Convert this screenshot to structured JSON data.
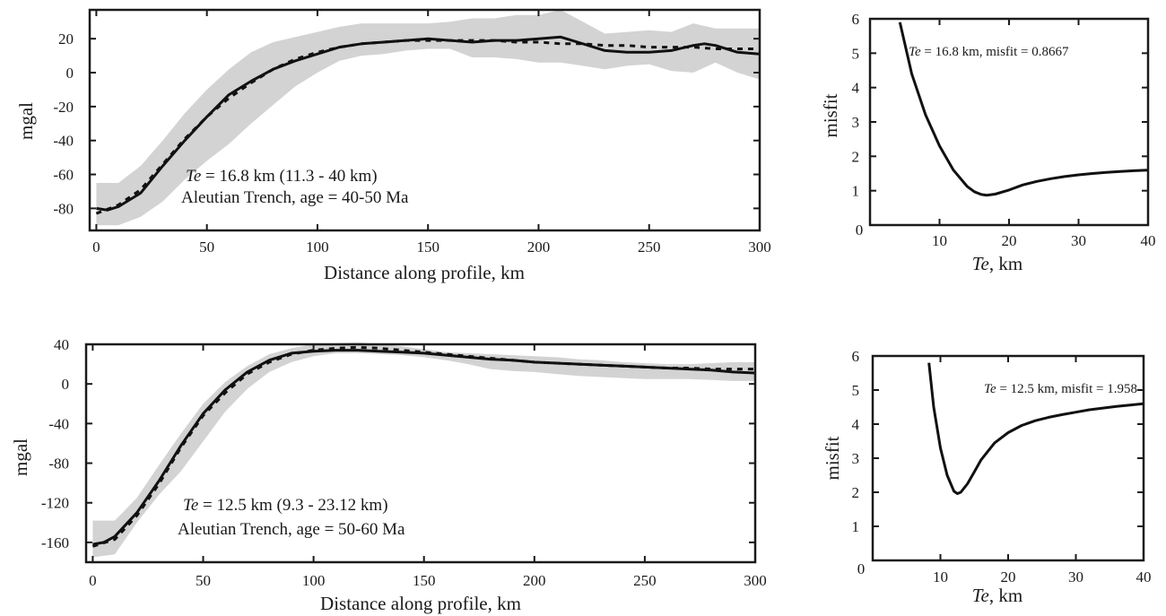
{
  "colors": {
    "uncertainty_band": "#d3d3d3",
    "line": "#111111"
  },
  "chart_data": [
    {
      "id": "p1",
      "type": "line",
      "xlabel": "Distance along profile, km",
      "ylabel": "mgal",
      "xlim": [
        -3,
        300
      ],
      "ylim": [
        -93,
        37
      ],
      "xticks": [
        0,
        50,
        100,
        150,
        200,
        250,
        300
      ],
      "yticks": [
        20,
        0,
        -20,
        -40,
        -60,
        -80
      ],
      "grid": false,
      "annotation": {
        "line1_italic": "Te",
        "line1_rest": " = 16.8 km (11.3 - 40 km)",
        "line2": "Aleutian Trench, age = 40-50 Ma"
      },
      "band": {
        "x": [
          0,
          10,
          20,
          30,
          40,
          50,
          60,
          70,
          80,
          90,
          100,
          110,
          120,
          130,
          140,
          150,
          160,
          170,
          180,
          190,
          200,
          210,
          220,
          230,
          240,
          250,
          260,
          270,
          280,
          290,
          300
        ],
        "upper": [
          -65,
          -65,
          -55,
          -40,
          -24,
          -10,
          2,
          12,
          18,
          21,
          24,
          27,
          29,
          29,
          29,
          29,
          30,
          32,
          32,
          34,
          34,
          37,
          30,
          23,
          24,
          25,
          24,
          29,
          26,
          26,
          26
        ],
        "lower": [
          -90,
          -90,
          -85,
          -76,
          -63,
          -52,
          -42,
          -30,
          -19,
          -8,
          0,
          7,
          10,
          11,
          13,
          14,
          14,
          9,
          9,
          8,
          6,
          6,
          4,
          2,
          4,
          5,
          1,
          0,
          6,
          0,
          -4
        ]
      },
      "series": [
        {
          "style": "solid",
          "x": [
            0,
            5,
            10,
            20,
            30,
            40,
            50,
            60,
            70,
            80,
            90,
            100,
            110,
            120,
            130,
            140,
            150,
            160,
            170,
            180,
            190,
            200,
            210,
            220,
            230,
            240,
            250,
            260,
            270,
            275,
            280,
            290,
            300
          ],
          "y": [
            -80,
            -81,
            -79,
            -71,
            -55,
            -40,
            -26,
            -13,
            -5,
            2,
            7,
            11,
            15,
            17,
            18,
            19,
            20,
            19,
            18,
            19,
            19,
            20,
            21,
            17,
            13,
            12,
            12,
            13,
            16,
            17,
            16,
            12,
            11
          ]
        },
        {
          "style": "dashed",
          "x": [
            0,
            10,
            20,
            30,
            40,
            50,
            60,
            70,
            80,
            90,
            100,
            110,
            120,
            130,
            140,
            150,
            160,
            170,
            180,
            190,
            200,
            210,
            220,
            230,
            240,
            250,
            260,
            270,
            280,
            290,
            300
          ],
          "y": [
            -83,
            -78,
            -69,
            -54,
            -39,
            -26,
            -15,
            -6,
            2,
            8,
            12,
            15,
            17,
            18,
            19,
            19,
            19,
            19,
            19,
            18,
            18,
            17,
            17,
            16,
            16,
            15,
            15,
            15,
            14,
            14,
            14
          ]
        }
      ]
    },
    {
      "id": "m1",
      "type": "line",
      "xlabel_italic": "Te",
      "xlabel_rest": ", km",
      "ylabel": "misfit",
      "xlim": [
        0,
        40
      ],
      "ylim": [
        0,
        6
      ],
      "xticks": [
        10,
        20,
        30,
        40
      ],
      "yticks": [
        6,
        5,
        4,
        3,
        2,
        1
      ],
      "origin_label": "0",
      "grid": false,
      "annotation": {
        "italic": "Te",
        "rest": " = 16.8 km, misfit = 0.8667"
      },
      "series": [
        {
          "style": "solid",
          "x": [
            4.3,
            6,
            8,
            10,
            12,
            14,
            15,
            16,
            16.8,
            18,
            20,
            22,
            24,
            26,
            28,
            30,
            32,
            34,
            36,
            38,
            40
          ],
          "y": [
            5.9,
            4.4,
            3.2,
            2.3,
            1.6,
            1.12,
            0.97,
            0.89,
            0.87,
            0.9,
            1.02,
            1.17,
            1.27,
            1.35,
            1.41,
            1.46,
            1.5,
            1.53,
            1.56,
            1.58,
            1.6
          ]
        }
      ]
    },
    {
      "id": "p2",
      "type": "line",
      "xlabel": "Distance along profile, km",
      "ylabel": "mgal",
      "xlim": [
        -3,
        300
      ],
      "ylim": [
        -180,
        40
      ],
      "xticks": [
        0,
        50,
        100,
        150,
        200,
        250,
        300
      ],
      "yticks": [
        40,
        0,
        -40,
        -80,
        -120,
        -160
      ],
      "grid": false,
      "annotation": {
        "line1_italic": "Te",
        "line1_rest": " = 12.5 km (9.3 - 23.12 km)",
        "line2": "Aleutian Trench, age = 50-60 Ma"
      },
      "band": {
        "x": [
          0,
          10,
          20,
          30,
          40,
          50,
          60,
          70,
          80,
          90,
          100,
          110,
          120,
          130,
          140,
          150,
          160,
          170,
          180,
          190,
          200,
          210,
          220,
          230,
          240,
          250,
          260,
          270,
          280,
          290,
          300
        ],
        "upper": [
          -138,
          -138,
          -115,
          -82,
          -50,
          -20,
          2,
          18,
          30,
          36,
          40,
          41,
          42,
          40,
          38,
          35,
          32,
          31,
          30,
          29,
          28,
          27,
          25,
          24,
          22,
          21,
          20,
          20,
          21,
          22,
          22
        ],
        "lower": [
          -175,
          -172,
          -140,
          -112,
          -88,
          -58,
          -28,
          -5,
          12,
          22,
          28,
          31,
          31,
          30,
          29,
          27,
          24,
          20,
          15,
          13,
          12,
          10,
          8,
          7,
          6,
          5,
          5,
          5,
          4,
          3,
          3
        ]
      },
      "series": [
        {
          "style": "solid",
          "x": [
            0,
            5,
            10,
            20,
            30,
            40,
            50,
            60,
            70,
            80,
            90,
            100,
            110,
            120,
            130,
            140,
            150,
            160,
            170,
            180,
            190,
            200,
            210,
            220,
            230,
            240,
            250,
            260,
            270,
            280,
            290,
            300
          ],
          "y": [
            -162,
            -160,
            -154,
            -130,
            -98,
            -62,
            -30,
            -6,
            12,
            24,
            31,
            33,
            34,
            34,
            33,
            32,
            31,
            29,
            27,
            25,
            24,
            22,
            21,
            20,
            19,
            18,
            17,
            16,
            15,
            14,
            12,
            11
          ]
        },
        {
          "style": "dashed",
          "x": [
            0,
            10,
            20,
            30,
            40,
            50,
            60,
            70,
            80,
            90,
            100,
            110,
            120,
            130,
            140,
            150,
            160,
            170,
            180,
            190,
            200,
            210,
            220,
            230,
            240,
            250,
            260,
            270,
            280,
            290,
            300
          ],
          "y": [
            -164,
            -157,
            -133,
            -101,
            -64,
            -32,
            -9,
            10,
            22,
            30,
            34,
            36,
            37,
            36,
            34,
            32,
            30,
            28,
            26,
            24,
            22,
            21,
            20,
            19,
            18,
            17,
            16,
            16,
            15,
            15,
            15
          ]
        }
      ]
    },
    {
      "id": "m2",
      "type": "line",
      "xlabel_italic": "Te",
      "xlabel_rest": ", km",
      "ylabel": "misfit",
      "xlim": [
        0,
        40
      ],
      "ylim": [
        0,
        6
      ],
      "xticks": [
        10,
        20,
        30,
        40
      ],
      "yticks": [
        6,
        5,
        4,
        3,
        2,
        1
      ],
      "origin_label": "0",
      "grid": false,
      "annotation": {
        "italic": "Te",
        "rest": " = 12.5 km, misfit = 1.958"
      },
      "series": [
        {
          "style": "solid",
          "x": [
            8.3,
            9,
            10,
            11,
            12,
            12.5,
            13,
            14,
            15,
            16,
            18,
            20,
            22,
            24,
            26,
            28,
            30,
            32,
            34,
            36,
            38,
            40
          ],
          "y": [
            5.8,
            4.5,
            3.3,
            2.5,
            2.03,
            1.96,
            2.0,
            2.25,
            2.6,
            2.95,
            3.45,
            3.75,
            3.96,
            4.1,
            4.2,
            4.28,
            4.35,
            4.42,
            4.47,
            4.52,
            4.56,
            4.6
          ]
        }
      ]
    }
  ]
}
